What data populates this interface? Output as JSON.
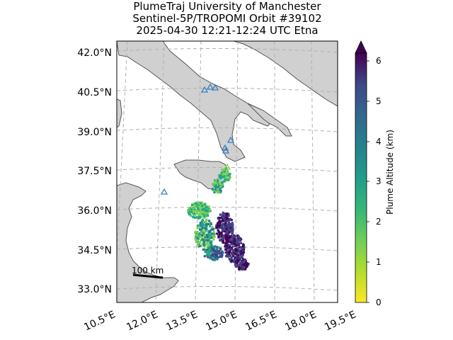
{
  "title": {
    "line1": "PlumeTraj    University of Manchester",
    "line2": "Sentinel-5P/TROPOMI Orbit #39102",
    "line3": "2025-04-30    12:21-12:24 UTC   Etna"
  },
  "map": {
    "lat_ticks": [
      "42.0°N",
      "40.5°N",
      "39.0°N",
      "37.5°N",
      "36.0°N",
      "34.5°N",
      "33.0°N"
    ],
    "lon_ticks": [
      "10.5°E",
      "12.0°E",
      "13.5°E",
      "15.0°E",
      "16.5°E",
      "18.0°E",
      "19.5°E"
    ],
    "land_color": "#d0d0d0",
    "sea_color": "#ffffff",
    "grid": true,
    "volcano_marker_icon": "triangle-icon",
    "volcano_marker_color": "#3a7fc0"
  },
  "scale_bar": {
    "label": "100 km"
  },
  "colorbar": {
    "label": "Plume Altitude (km)",
    "ticks": [
      "0",
      "1",
      "2",
      "3",
      "4",
      "5",
      "6"
    ],
    "min": 0,
    "max": 6,
    "colormap": "viridis",
    "extend": "max",
    "colors": [
      "#fde725",
      "#7ad151",
      "#22a884",
      "#2a788e",
      "#414487",
      "#440154"
    ]
  }
}
